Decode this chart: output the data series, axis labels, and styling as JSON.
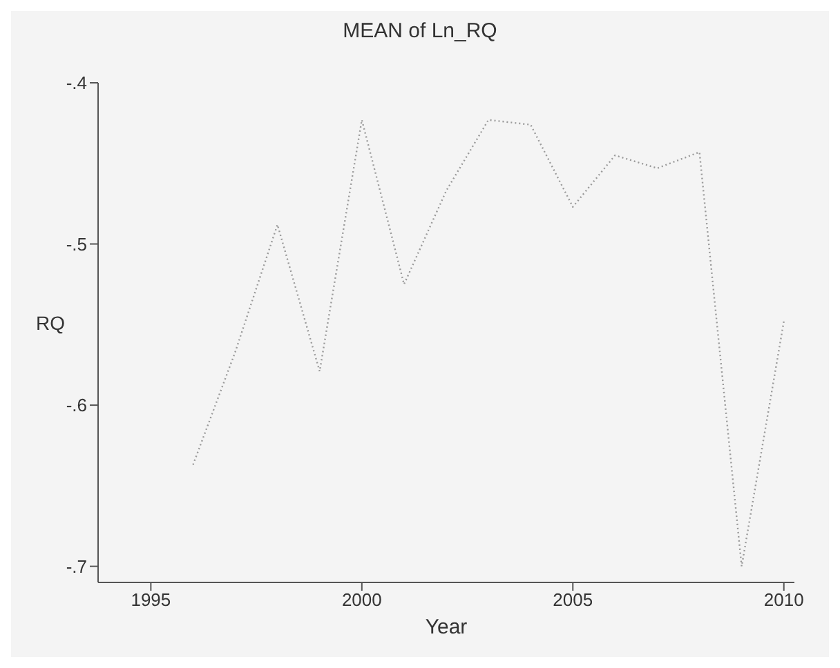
{
  "chart_data": {
    "type": "line",
    "title": "MEAN of Ln_RQ",
    "xlabel": "Year",
    "ylabel": "RQ",
    "x": [
      1996,
      1997,
      1998,
      1999,
      2000,
      2001,
      2002,
      2003,
      2004,
      2005,
      2006,
      2007,
      2008,
      2009,
      2010
    ],
    "series": [
      {
        "color": "#9a9a9a",
        "values": [
          -0.637,
          -0.567,
          -0.488,
          -0.579,
          -0.423,
          -0.525,
          -0.467,
          -0.423,
          -0.426,
          -0.477,
          -0.445,
          -0.453,
          -0.443,
          -0.7,
          -0.548
        ]
      }
    ],
    "xlim": [
      1993.75,
      2010.25
    ],
    "xticks": [
      1995,
      2000,
      2005,
      2010
    ],
    "ylim": [
      -0.71,
      -0.4
    ],
    "yticks": [
      {
        "value": -0.7,
        "label": "-.7"
      },
      {
        "value": -0.6,
        "label": "-.6"
      },
      {
        "value": -0.5,
        "label": "-.5"
      },
      {
        "value": -0.4,
        "label": "-.4"
      }
    ],
    "grid": false,
    "legend": false,
    "marker": "none",
    "line_style": "dotted"
  }
}
